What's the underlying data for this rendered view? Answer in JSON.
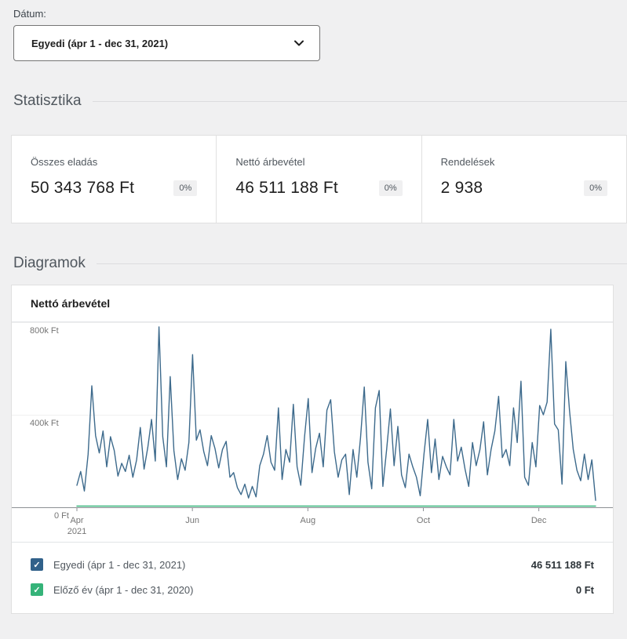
{
  "page": {
    "background": "#f0f0f1"
  },
  "date_filter": {
    "label": "Dátum:",
    "value": "Egyedi (ápr 1 - dec 31, 2021)"
  },
  "sections": {
    "stats_title": "Statisztika",
    "charts_title": "Diagramok"
  },
  "stats_cards": [
    {
      "label": "Összes eladás",
      "value": "50 343 768 Ft",
      "delta": "0%"
    },
    {
      "label": "Nettó árbevétel",
      "value": "46 511 188 Ft",
      "delta": "0%"
    },
    {
      "label": "Rendelések",
      "value": "2 938",
      "delta": "0%"
    }
  ],
  "chart_card": {
    "title": "Nettó árbevétel",
    "legend": [
      {
        "label": "Egyedi (ápr 1 - dec 31, 2021)",
        "value": "46 511 188 Ft",
        "color": "#31618a",
        "checked": true
      },
      {
        "label": "Előző év (ápr 1 - dec 31, 2020)",
        "value": "0 Ft",
        "color": "#35b379",
        "checked": true
      }
    ]
  },
  "chart_data": {
    "type": "line",
    "title": "Nettó árbevétel",
    "unit": "k Ft",
    "ylim": [
      0,
      800
    ],
    "grid": "horizontal",
    "legend_position": "bottom",
    "x_range": {
      "start": "2021-04-01",
      "end": "2021-12-31",
      "days": 274
    },
    "x_ticks": [
      {
        "label": "Apr",
        "sublabel": "2021",
        "day": 0
      },
      {
        "label": "Jun",
        "day": 61
      },
      {
        "label": "Aug",
        "day": 122
      },
      {
        "label": "Oct",
        "day": 183
      },
      {
        "label": "Dec",
        "day": 244
      }
    ],
    "y_ticks": [
      {
        "value": 800,
        "label": "800k Ft"
      },
      {
        "value": 400,
        "label": "400k Ft"
      },
      {
        "value": 0,
        "label": "0 Ft"
      }
    ],
    "series": [
      {
        "name": "Egyedi (ápr 1 - dec 31, 2021)",
        "color": "#3d6a8c",
        "total": "46 511 188 Ft",
        "values_k": [
          95,
          155,
          70,
          230,
          525,
          310,
          235,
          330,
          175,
          305,
          245,
          135,
          190,
          155,
          225,
          130,
          205,
          345,
          165,
          260,
          380,
          200,
          780,
          305,
          175,
          565,
          245,
          120,
          210,
          160,
          280,
          660,
          290,
          335,
          240,
          180,
          310,
          255,
          170,
          250,
          285,
          130,
          150,
          85,
          55,
          100,
          40,
          90,
          45,
          180,
          230,
          310,
          195,
          160,
          430,
          120,
          250,
          195,
          445,
          175,
          95,
          305,
          470,
          150,
          255,
          320,
          175,
          420,
          465,
          240,
          130,
          205,
          230,
          55,
          250,
          130,
          300,
          520,
          195,
          80,
          430,
          505,
          90,
          250,
          425,
          180,
          350,
          140,
          85,
          230,
          175,
          130,
          50,
          230,
          380,
          150,
          295,
          120,
          220,
          175,
          140,
          380,
          200,
          260,
          165,
          90,
          280,
          180,
          250,
          370,
          140,
          250,
          330,
          480,
          215,
          250,
          180,
          430,
          280,
          545,
          130,
          95,
          280,
          175,
          440,
          400,
          455,
          770,
          360,
          335,
          100,
          630,
          420,
          250,
          160,
          115,
          230,
          120,
          205,
          30
        ]
      },
      {
        "name": "Előző év (ápr 1 - dec 31, 2020)",
        "color": "#35b379",
        "total": "0 Ft",
        "values_k": [
          0,
          0
        ]
      }
    ]
  }
}
